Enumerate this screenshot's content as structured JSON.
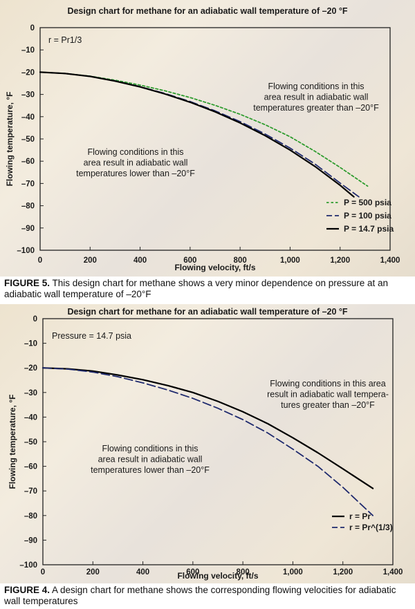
{
  "captions": [
    {
      "figure": "FIGURE 5.",
      "text": " This design chart for methane shows a very minor dependence on pressure at an adiabatic wall temperature of –20°F"
    },
    {
      "figure": "FIGURE 4.",
      "text": " A design chart for methane shows the corresponding flowing velocities for adiabatic wall temperatures"
    }
  ],
  "chart_data": [
    {
      "type": "line",
      "title": "Design chart for methane for an adiabatic wall temperature of –20 °F",
      "xlabel": "Flowing velocity, ft/s",
      "ylabel": "Flowing temperature, °F",
      "xlim": [
        0,
        1400
      ],
      "ylim": [
        -100,
        0
      ],
      "xticks": [
        0,
        200,
        400,
        600,
        800,
        1000,
        1200,
        1400
      ],
      "xtick_labels": [
        "0",
        "200",
        "400",
        "600",
        "800",
        "1,000",
        "1,200",
        "1,400"
      ],
      "yticks": [
        0,
        -10,
        -20,
        -30,
        -40,
        -50,
        -60,
        -70,
        -80,
        -90,
        -100
      ],
      "ytick_labels": [
        "0",
        "–10",
        "–20",
        "–30",
        "–40",
        "–50",
        "–60",
        "–70",
        "–80",
        "–90",
        "–100"
      ],
      "grid": false,
      "legend_position": "bottom-right",
      "annotations": [
        {
          "id": "corner-note",
          "lines": [
            "r = Pr1/3"
          ]
        },
        {
          "id": "upper-note",
          "lines": [
            "Flowing conditions in this",
            "area result in adiabatic wall",
            "temperatures greater than –20°F"
          ]
        },
        {
          "id": "lower-note",
          "lines": [
            "Flowing conditions in this",
            "area result in adiabatic wall",
            "temperatures lower than –20°F"
          ]
        }
      ],
      "series": [
        {
          "name": "P = 500 psia",
          "color": "#2e9c2e",
          "style": "dotted",
          "x": [
            0,
            100,
            200,
            300,
            400,
            500,
            600,
            700,
            800,
            900,
            1000,
            1100,
            1200,
            1310
          ],
          "y": [
            -20,
            -20.6,
            -21.8,
            -23.6,
            -25.8,
            -28.4,
            -31.4,
            -34.9,
            -38.9,
            -43.6,
            -49.0,
            -55.6,
            -62.8,
            -71.2
          ]
        },
        {
          "name": "P = 100 psia",
          "color": "#1f2a6e",
          "style": "dashed",
          "x": [
            0,
            100,
            200,
            300,
            400,
            500,
            600,
            700,
            800,
            900,
            1000,
            1100,
            1200,
            1275
          ],
          "y": [
            -20,
            -20.6,
            -21.9,
            -23.9,
            -26.5,
            -29.6,
            -33.2,
            -37.4,
            -42.2,
            -47.8,
            -54.1,
            -61.3,
            -69.8,
            -76.0
          ]
        },
        {
          "name": "P = 14.7 psia",
          "color": "#000000",
          "style": "solid",
          "x": [
            0,
            100,
            200,
            300,
            400,
            500,
            600,
            700,
            800,
            900,
            1000,
            1100,
            1200,
            1255
          ],
          "y": [
            -20,
            -20.6,
            -21.9,
            -24.0,
            -26.6,
            -29.8,
            -33.5,
            -37.8,
            -42.8,
            -48.5,
            -55.0,
            -62.4,
            -70.8,
            -76.0
          ]
        }
      ]
    },
    {
      "type": "line",
      "title": "Design chart for methane for an adiabatic wall temperature of –20 °F",
      "xlabel": "Flowing velocity, ft/s",
      "ylabel": "Flowing temperature, °F",
      "xlim": [
        0,
        1400
      ],
      "ylim": [
        -100,
        0
      ],
      "xticks": [
        0,
        200,
        400,
        600,
        800,
        1000,
        1200,
        1400
      ],
      "xtick_labels": [
        "0",
        "200",
        "400",
        "600",
        "800",
        "1,000",
        "1,200",
        "1,400"
      ],
      "yticks": [
        0,
        -10,
        -20,
        -30,
        -40,
        -50,
        -60,
        -70,
        -80,
        -90,
        -100
      ],
      "ytick_labels": [
        "0",
        "–10",
        "–20",
        "–30",
        "–40",
        "–50",
        "–60",
        "–70",
        "–80",
        "–90",
        "–100"
      ],
      "grid": false,
      "legend_position": "bottom-right",
      "annotations": [
        {
          "id": "corner-note",
          "lines": [
            "Pressure = 14.7 psia"
          ]
        },
        {
          "id": "upper-note",
          "lines": [
            "Flowing conditions in this area",
            "result in adiabatic wall tempera-",
            "tures greater than –20°F"
          ]
        },
        {
          "id": "lower-note",
          "lines": [
            "Flowing conditions in this",
            "area result in adiabatic wall",
            "temperatures lower than –20°F"
          ]
        }
      ],
      "series": [
        {
          "name": "r = Pr",
          "color": "#000000",
          "style": "solid",
          "x": [
            0,
            100,
            200,
            300,
            400,
            500,
            600,
            700,
            800,
            900,
            1000,
            1100,
            1200,
            1320
          ],
          "y": [
            -20,
            -20.4,
            -21.3,
            -22.9,
            -24.8,
            -27.2,
            -30.0,
            -33.6,
            -37.8,
            -42.7,
            -48.4,
            -54.5,
            -61.0,
            -69.0
          ]
        },
        {
          "name": "r = Pr^(1/3)",
          "color": "#1f2a6e",
          "style": "dashed",
          "x": [
            0,
            100,
            200,
            300,
            400,
            500,
            600,
            700,
            800,
            900,
            1000,
            1100,
            1200,
            1320
          ],
          "y": [
            -20,
            -20.5,
            -21.7,
            -23.6,
            -26.1,
            -29.0,
            -32.4,
            -36.4,
            -41.0,
            -46.5,
            -53.0,
            -60.0,
            -68.5,
            -80.0
          ]
        }
      ]
    }
  ]
}
